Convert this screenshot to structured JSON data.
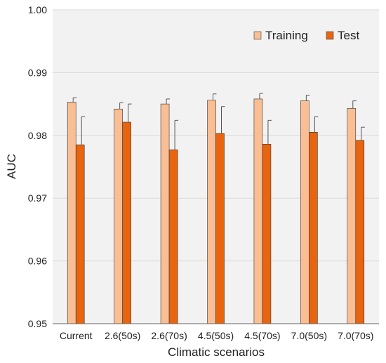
{
  "chart_data": {
    "type": "bar",
    "title": "",
    "xlabel": "Climatic scenarios",
    "ylabel": "AUC",
    "ylim": [
      0.95,
      1.0
    ],
    "yticks": [
      "0.95",
      "0.96",
      "0.97",
      "0.98",
      "0.99",
      "1.00"
    ],
    "categories": [
      "Current",
      "2.6(50s)",
      "2.6(70s)",
      "4.5(50s)",
      "4.5(70s)",
      "7.0(50s)",
      "7.0(70s)"
    ],
    "series": [
      {
        "name": "Training",
        "color": "#F9BE93",
        "values": [
          0.9853,
          0.9842,
          0.985,
          0.9856,
          0.9858,
          0.9855,
          0.9843
        ],
        "errors": [
          0.0007,
          0.001,
          0.0008,
          0.001,
          0.0009,
          0.0009,
          0.0012
        ]
      },
      {
        "name": "Test",
        "color": "#E8640F",
        "values": [
          0.9785,
          0.9821,
          0.9777,
          0.9803,
          0.9786,
          0.9805,
          0.9792
        ],
        "errors": [
          0.0045,
          0.0029,
          0.0047,
          0.0043,
          0.0038,
          0.0025,
          0.0021
        ]
      }
    ],
    "grid": true,
    "legend_position": "top-right"
  }
}
